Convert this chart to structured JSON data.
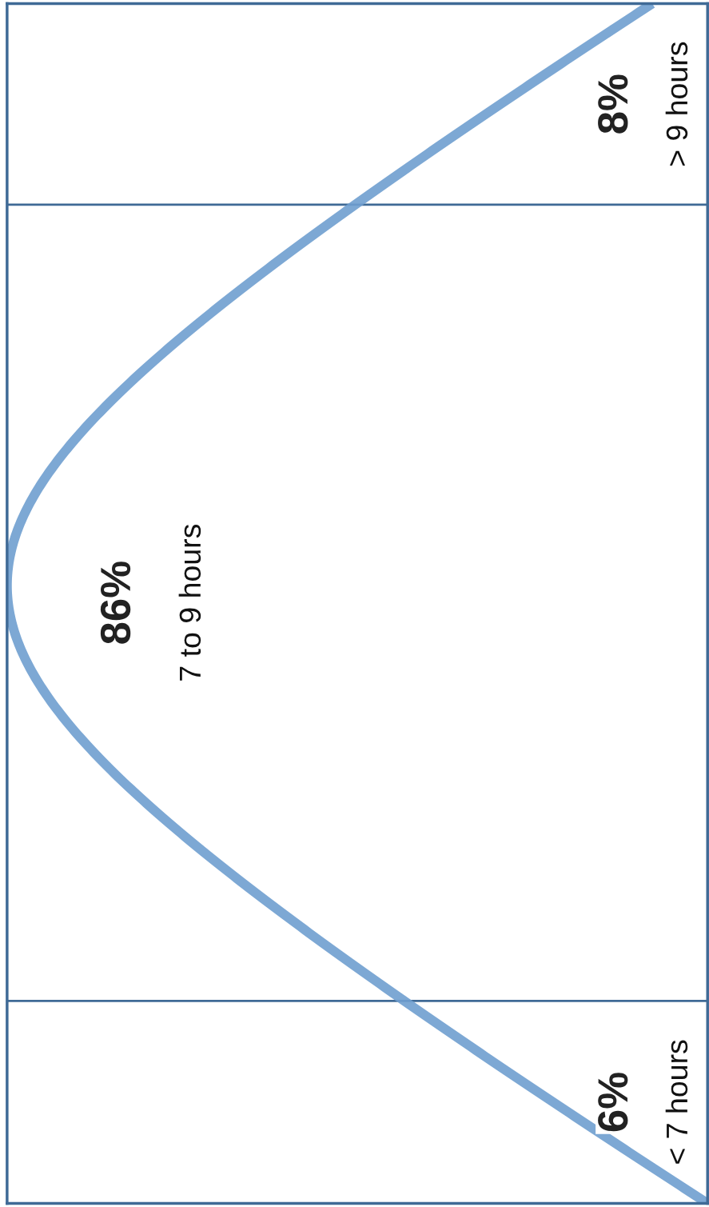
{
  "chart_data": {
    "type": "other",
    "categories": [
      "< 7 hours",
      "7 to 9 hours",
      "> 9 hours"
    ],
    "values": [
      6,
      86,
      8
    ],
    "value_labels": [
      "6%",
      "86%",
      "8%"
    ]
  }
}
